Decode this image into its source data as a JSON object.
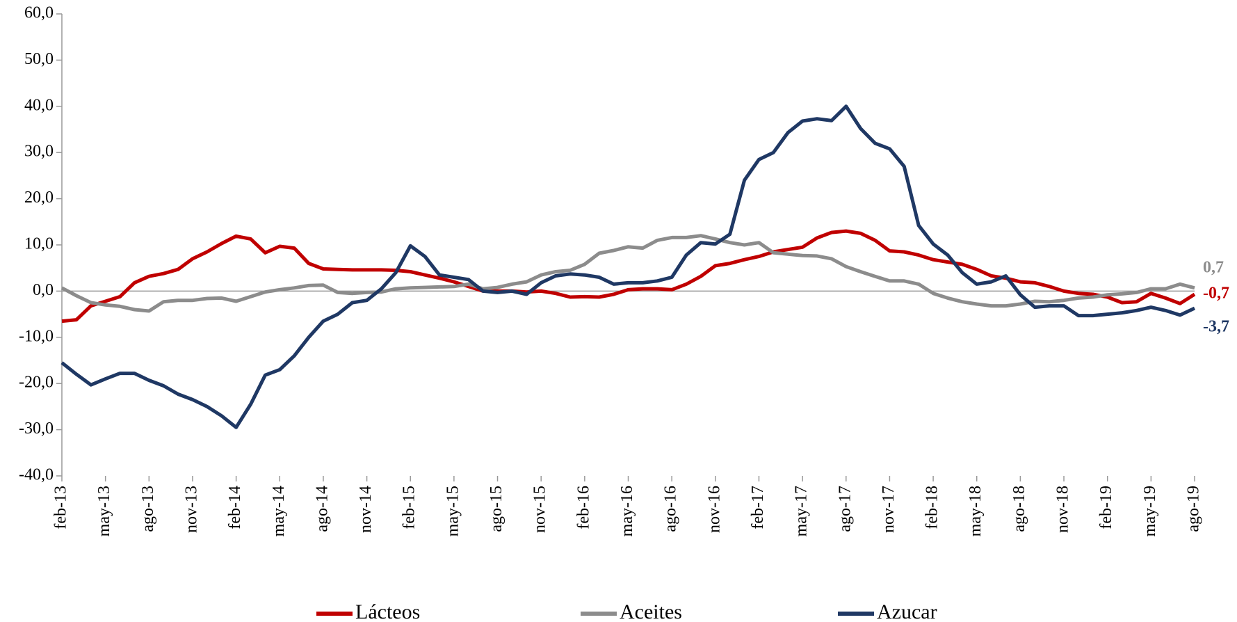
{
  "chart_data": {
    "type": "line",
    "categories": [
      "feb-13",
      null,
      null,
      "may-13",
      null,
      null,
      "ago-13",
      null,
      null,
      "nov-13",
      null,
      null,
      "feb-14",
      null,
      null,
      "may-14",
      null,
      null,
      "ago-14",
      null,
      null,
      "nov-14",
      null,
      null,
      "feb-15",
      null,
      null,
      "may-15",
      null,
      null,
      "ago-15",
      null,
      null,
      "nov-15",
      null,
      null,
      "feb-16",
      null,
      null,
      "may-16",
      null,
      null,
      "ago-16",
      null,
      null,
      "nov-16",
      null,
      null,
      "feb-17",
      null,
      null,
      "may-17",
      null,
      null,
      "ago-17",
      null,
      null,
      "nov-17",
      null,
      null,
      "feb-18",
      null,
      null,
      "may-18",
      null,
      null,
      "ago-18",
      null,
      null,
      "nov-18",
      null,
      null,
      "feb-19",
      null,
      null,
      "may-19",
      null,
      null,
      "ago-19"
    ],
    "series": [
      {
        "name": "Lácteos",
        "color": "#c00000",
        "values": [
          -6.5,
          -6.2,
          -3.2,
          -2.2,
          -1.2,
          1.8,
          3.2,
          3.8,
          4.7,
          7,
          8.5,
          10.3,
          11.9,
          11.3,
          8.3,
          9.7,
          9.3,
          6,
          4.8,
          4.7,
          4.6,
          4.6,
          4.6,
          4.5,
          4.2,
          3.5,
          2.8,
          2,
          1,
          0,
          0,
          0,
          -0.2,
          0,
          -0.5,
          -1.3,
          -1.2,
          -1.3,
          -0.7,
          0.3,
          0.5,
          0.5,
          0.3,
          1.5,
          3.2,
          5.5,
          6,
          6.8,
          7.5,
          8.5,
          9,
          9.5,
          11.5,
          12.7,
          13,
          12.5,
          11,
          8.7,
          8.5,
          7.8,
          6.8,
          6.3,
          5.8,
          4.7,
          3.3,
          2.8,
          2,
          1.8,
          1,
          0,
          -0.5,
          -0.7,
          -1.3,
          -2.5,
          -2.3,
          -0.5,
          -1.5,
          -2.7,
          -0.7
        ],
        "value_labels": [
          null,
          null,
          null,
          null,
          null,
          null,
          null,
          null,
          null,
          null,
          null,
          null,
          null,
          null,
          null,
          null,
          null,
          null,
          null,
          null,
          null,
          null,
          null,
          null,
          null,
          null,
          null,
          null,
          null,
          null,
          null,
          null,
          null,
          null,
          null,
          null,
          null,
          null,
          null,
          null,
          null,
          null,
          null,
          null,
          null,
          null,
          null,
          null,
          null,
          null,
          null,
          null,
          null,
          null,
          null,
          null,
          null,
          null,
          null,
          null,
          null,
          null,
          null,
          null,
          null,
          null,
          null,
          null,
          null,
          null,
          null,
          null,
          null,
          null,
          null,
          null,
          null,
          null,
          "-0,7"
        ]
      },
      {
        "name": "Aceites",
        "color": "#8c8c8c",
        "values": [
          0.7,
          -1,
          -2.5,
          -3,
          -3.3,
          -4,
          -4.3,
          -2.3,
          -2,
          -2,
          -1.6,
          -1.5,
          -2.2,
          -1.2,
          -0.2,
          0.3,
          0.7,
          1.2,
          1.3,
          -0.3,
          -0.5,
          -0.3,
          -0.2,
          0.5,
          0.7,
          0.8,
          0.9,
          1,
          1.5,
          0.5,
          0.8,
          1.5,
          2,
          3.5,
          4.2,
          4.5,
          5.8,
          8.2,
          8.8,
          9.6,
          9.3,
          11,
          11.6,
          11.6,
          12,
          11.3,
          10.5,
          10,
          10.5,
          8.3,
          8,
          7.7,
          7.6,
          7,
          5.3,
          4.2,
          3.2,
          2.2,
          2.2,
          1.5,
          -0.5,
          -1.5,
          -2.3,
          -2.8,
          -3.2,
          -3.2,
          -2.8,
          -2.2,
          -2.3,
          -2,
          -1.5,
          -1.3,
          -0.8,
          -0.6,
          -0.3,
          0.5,
          0.5,
          1.5,
          0.7
        ],
        "value_labels": [
          null,
          null,
          null,
          null,
          null,
          null,
          null,
          null,
          null,
          null,
          null,
          null,
          null,
          null,
          null,
          null,
          null,
          null,
          null,
          null,
          null,
          null,
          null,
          null,
          null,
          null,
          null,
          null,
          null,
          null,
          null,
          null,
          null,
          null,
          null,
          null,
          null,
          null,
          null,
          null,
          null,
          null,
          null,
          null,
          null,
          null,
          null,
          null,
          null,
          null,
          null,
          null,
          null,
          null,
          null,
          null,
          null,
          null,
          null,
          null,
          null,
          null,
          null,
          null,
          null,
          null,
          null,
          null,
          null,
          null,
          null,
          null,
          null,
          null,
          null,
          null,
          null,
          null,
          "0,7"
        ]
      },
      {
        "name": "Azucar",
        "color": "#1f3864",
        "values": [
          -15.5,
          -18,
          -20.3,
          -19,
          -17.8,
          -17.8,
          -19.3,
          -20.5,
          -22.3,
          -23.5,
          -25,
          -27,
          -29.5,
          -24.5,
          -18.2,
          -17,
          -14,
          -10,
          -6.5,
          -5,
          -2.5,
          -2,
          0.5,
          4,
          9.8,
          7.5,
          3.5,
          3,
          2.5,
          0,
          -0.3,
          0,
          -0.7,
          1.8,
          3.3,
          3.7,
          3.5,
          3,
          1.5,
          1.8,
          1.8,
          2.2,
          3,
          7.8,
          10.5,
          10.2,
          12.3,
          24,
          28.5,
          30,
          34.3,
          36.8,
          37.3,
          36.9,
          40,
          35.2,
          32,
          30.8,
          27,
          14.2,
          10.2,
          7.8,
          4,
          1.5,
          2,
          3.3,
          -0.8,
          -3.5,
          -3.2,
          -3.2,
          -5.3,
          -5.3,
          -5,
          -4.7,
          -4.2,
          -3.5,
          -4.2,
          -5.2,
          -3.7
        ],
        "value_labels": [
          null,
          null,
          null,
          null,
          null,
          null,
          null,
          null,
          null,
          null,
          null,
          null,
          null,
          null,
          null,
          null,
          null,
          null,
          null,
          null,
          null,
          null,
          null,
          null,
          null,
          null,
          null,
          null,
          null,
          null,
          null,
          null,
          null,
          null,
          null,
          null,
          null,
          null,
          null,
          null,
          null,
          null,
          null,
          null,
          null,
          null,
          null,
          null,
          null,
          null,
          null,
          null,
          null,
          null,
          null,
          null,
          null,
          null,
          null,
          null,
          null,
          null,
          null,
          null,
          null,
          null,
          null,
          null,
          null,
          null,
          null,
          null,
          null,
          null,
          null,
          null,
          null,
          null,
          "-3,7"
        ]
      }
    ],
    "ylim": [
      -40,
      60
    ],
    "yticks": [
      {
        "value": -40,
        "label": "-40,0"
      },
      {
        "value": -30,
        "label": "-30,0"
      },
      {
        "value": -20,
        "label": "-20,0"
      },
      {
        "value": -10,
        "label": "-10,0"
      },
      {
        "value": 0,
        "label": "0,0"
      },
      {
        "value": 10,
        "label": "10,0"
      },
      {
        "value": 20,
        "label": "20,0"
      },
      {
        "value": 30,
        "label": "30,0"
      },
      {
        "value": 40,
        "label": "40,0"
      },
      {
        "value": 50,
        "label": "50,0"
      },
      {
        "value": 60,
        "label": "60,0"
      }
    ],
    "grid": false,
    "legend": "bottom"
  }
}
